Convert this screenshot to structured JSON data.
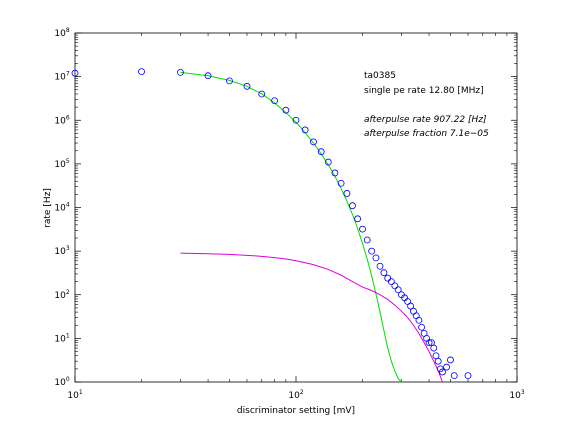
{
  "chart_data": {
    "type": "scatter",
    "title": "",
    "xlabel": "discriminator setting [mV]",
    "ylabel": "rate [Hz]",
    "xscale": "log",
    "yscale": "log",
    "xlim": [
      10,
      1000
    ],
    "ylim": [
      1,
      100000000
    ],
    "grid": false,
    "x_ticks": [
      {
        "base": "10",
        "exp": "1",
        "value": 10
      },
      {
        "base": "10",
        "exp": "2",
        "value": 100
      },
      {
        "base": "10",
        "exp": "3",
        "value": 1000
      }
    ],
    "y_ticks": [
      {
        "base": "10",
        "exp": "0",
        "value": 1
      },
      {
        "base": "10",
        "exp": "1",
        "value": 10
      },
      {
        "base": "10",
        "exp": "2",
        "value": 100
      },
      {
        "base": "10",
        "exp": "3",
        "value": 1000
      },
      {
        "base": "10",
        "exp": "4",
        "value": 10000
      },
      {
        "base": "10",
        "exp": "5",
        "value": 100000
      },
      {
        "base": "10",
        "exp": "6",
        "value": 1000000
      },
      {
        "base": "10",
        "exp": "7",
        "value": 10000000
      },
      {
        "base": "10",
        "exp": "8",
        "value": 100000000
      }
    ],
    "annotations": [
      {
        "text": "ta0385",
        "italic": false
      },
      {
        "text": "single pe rate 12.80 [MHz]",
        "italic": false
      },
      {
        "text": "afterpulse rate 907.22 [Hz]",
        "italic": true
      },
      {
        "text": "afterpulse fraction 7.1e−05",
        "italic": true
      }
    ],
    "series": [
      {
        "marker": "circle",
        "color": "#0000ff",
        "points": [
          [
            10,
            12000000
          ],
          [
            20,
            13000000
          ],
          [
            30,
            12500000
          ],
          [
            40,
            10500000
          ],
          [
            50,
            8000000
          ],
          [
            60,
            6000000
          ],
          [
            70,
            4000000
          ],
          [
            80,
            2800000
          ],
          [
            90,
            1700000
          ],
          [
            100,
            1000000
          ],
          [
            110,
            600000
          ],
          [
            120,
            320000
          ],
          [
            130,
            190000
          ],
          [
            140,
            110000
          ],
          [
            150,
            62000
          ],
          [
            160,
            36000
          ],
          [
            170,
            21000
          ],
          [
            180,
            11000
          ],
          [
            190,
            5500
          ],
          [
            200,
            3200
          ],
          [
            210,
            1800
          ],
          [
            220,
            1000
          ],
          [
            230,
            700
          ],
          [
            240,
            450
          ],
          [
            250,
            320
          ],
          [
            260,
            240
          ],
          [
            270,
            200
          ],
          [
            280,
            160
          ],
          [
            290,
            130
          ],
          [
            300,
            100
          ],
          [
            310,
            85
          ],
          [
            320,
            70
          ],
          [
            330,
            55
          ],
          [
            340,
            42
          ],
          [
            350,
            33
          ],
          [
            360,
            26
          ],
          [
            370,
            18
          ],
          [
            380,
            13
          ],
          [
            390,
            10
          ],
          [
            400,
            8
          ],
          [
            410,
            8
          ],
          [
            420,
            6
          ],
          [
            430,
            4
          ],
          [
            440,
            3
          ],
          [
            450,
            2
          ],
          [
            460,
            1.7
          ],
          [
            480,
            2.2
          ],
          [
            500,
            3.2
          ],
          [
            520,
            1.4
          ],
          [
            600,
            1.4
          ]
        ]
      },
      {
        "marker": "line",
        "color": "#00dd00",
        "points": [
          [
            30,
            12500000
          ],
          [
            40,
            10500000
          ],
          [
            50,
            8200000
          ],
          [
            60,
            6000000
          ],
          [
            70,
            4000000
          ],
          [
            80,
            2500000
          ],
          [
            90,
            1500000
          ],
          [
            100,
            900000
          ],
          [
            110,
            520000
          ],
          [
            120,
            300000
          ],
          [
            130,
            170000
          ],
          [
            140,
            95000
          ],
          [
            150,
            52000
          ],
          [
            160,
            27000
          ],
          [
            170,
            14000
          ],
          [
            180,
            7000
          ],
          [
            190,
            3300
          ],
          [
            200,
            1500
          ],
          [
            210,
            650
          ],
          [
            220,
            270
          ],
          [
            230,
            105
          ],
          [
            240,
            40
          ],
          [
            250,
            15
          ],
          [
            260,
            6
          ],
          [
            270,
            3
          ],
          [
            280,
            1.8
          ],
          [
            290,
            1.2
          ],
          [
            300,
            1
          ]
        ]
      },
      {
        "marker": "line",
        "color": "#dd00dd",
        "points": [
          [
            30,
            900
          ],
          [
            40,
            870
          ],
          [
            50,
            840
          ],
          [
            60,
            800
          ],
          [
            70,
            760
          ],
          [
            80,
            710
          ],
          [
            90,
            660
          ],
          [
            100,
            600
          ],
          [
            120,
            490
          ],
          [
            140,
            380
          ],
          [
            160,
            280
          ],
          [
            180,
            200
          ],
          [
            200,
            150
          ],
          [
            220,
            125
          ],
          [
            240,
            100
          ],
          [
            260,
            78
          ],
          [
            280,
            58
          ],
          [
            300,
            42
          ],
          [
            320,
            30
          ],
          [
            340,
            20
          ],
          [
            360,
            13
          ],
          [
            380,
            8
          ],
          [
            400,
            5
          ],
          [
            420,
            3
          ],
          [
            440,
            1.8
          ],
          [
            460,
            1
          ]
        ]
      }
    ]
  }
}
